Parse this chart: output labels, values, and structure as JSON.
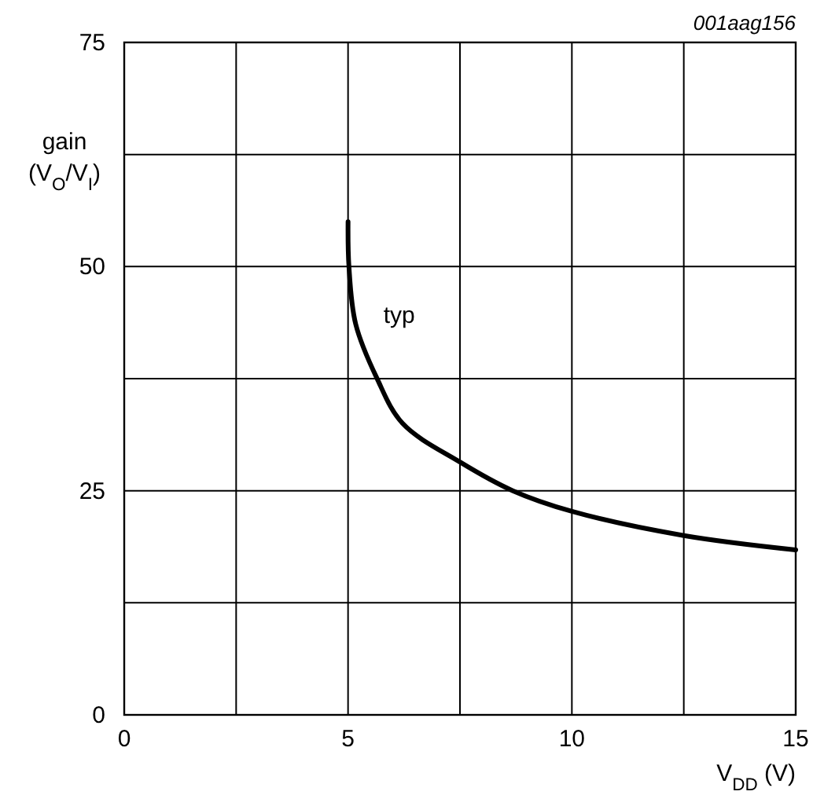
{
  "chart_data": {
    "type": "line",
    "xlabel": "V$_{DD}$ (V)",
    "ylabel": "gain (V$_{O}$/V$_{I}$)",
    "annotations": [
      "001aag156"
    ],
    "xlim": [
      0,
      15
    ],
    "xticks": [
      0,
      {
        "value": 2.5,
        "label": null
      },
      5,
      {
        "value": 7.5,
        "label": null
      },
      10,
      {
        "value": 12.5,
        "label": null
      },
      15
    ],
    "ylim": [
      0,
      75
    ],
    "yticks": [
      0,
      {
        "value": 12.5,
        "label": null
      },
      25,
      {
        "value": 37.5,
        "label": null
      },
      50,
      {
        "value": 62.5,
        "label": null
      },
      75
    ],
    "grid": true,
    "line_style": "solid",
    "marker": "none",
    "series": [
      {
        "name": "typ",
        "color": "#000000",
        "x": [
          5,
          5.02,
          5.17,
          5.64,
          6.22,
          7.5,
          8.68,
          10,
          12.5,
          15
        ],
        "values": [
          55,
          50,
          43.6,
          37.6,
          32.5,
          28.2,
          25,
          22.7,
          20,
          18.4
        ]
      }
    ]
  }
}
